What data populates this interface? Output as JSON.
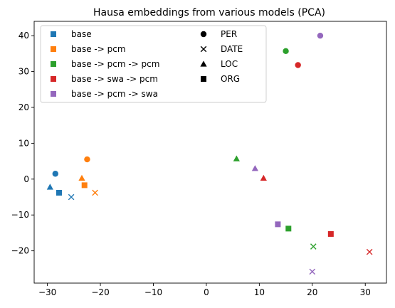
{
  "chart_data": {
    "type": "scatter",
    "title": "Hausa embeddings from various models (PCA)",
    "xlabel": "",
    "ylabel": "",
    "xlim": [
      -32.5,
      34
    ],
    "ylim": [
      -29,
      44
    ],
    "x_ticks": [
      -30,
      -20,
      -10,
      0,
      10,
      20,
      30
    ],
    "y_ticks": [
      -20,
      -10,
      0,
      10,
      20,
      30,
      40
    ],
    "grid": false,
    "legend_placement": "top-left",
    "series": [
      {
        "name": "base",
        "color": "#1f77b4",
        "points": [
          {
            "label": "PER",
            "x": -28.5,
            "y": 1.5
          },
          {
            "label": "DATE",
            "x": -25.5,
            "y": -5
          },
          {
            "label": "LOC",
            "x": -29.5,
            "y": -2.2
          },
          {
            "label": "ORG",
            "x": -27.8,
            "y": -3.8
          }
        ]
      },
      {
        "name": "base -> pcm",
        "color": "#ff7f0e",
        "points": [
          {
            "label": "PER",
            "x": -22.5,
            "y": 5.5
          },
          {
            "label": "DATE",
            "x": -21,
            "y": -3.8
          },
          {
            "label": "LOC",
            "x": -23.5,
            "y": 0.3
          },
          {
            "label": "ORG",
            "x": -23,
            "y": -1.7
          }
        ]
      },
      {
        "name": "base -> pcm -> pcm",
        "color": "#2ca02c",
        "points": [
          {
            "label": "PER",
            "x": 15,
            "y": 35.7
          },
          {
            "label": "DATE",
            "x": 20.2,
            "y": -18.8
          },
          {
            "label": "LOC",
            "x": 5.7,
            "y": 5.7
          },
          {
            "label": "ORG",
            "x": 15.5,
            "y": -13.8
          }
        ]
      },
      {
        "name": "base -> swa -> pcm",
        "color": "#d62728",
        "points": [
          {
            "label": "PER",
            "x": 17.3,
            "y": 31.8
          },
          {
            "label": "DATE",
            "x": 30.8,
            "y": -20.3
          },
          {
            "label": "LOC",
            "x": 10.8,
            "y": 0.3
          },
          {
            "label": "ORG",
            "x": 23.5,
            "y": -15.3
          }
        ]
      },
      {
        "name": "base -> pcm -> swa",
        "color": "#9467bd",
        "points": [
          {
            "label": "PER",
            "x": 21.5,
            "y": 40
          },
          {
            "label": "DATE",
            "x": 20,
            "y": -25.8
          },
          {
            "label": "LOC",
            "x": 9.2,
            "y": 3
          },
          {
            "label": "ORG",
            "x": 13.5,
            "y": -12.6
          }
        ]
      }
    ],
    "marker_legend": [
      {
        "label": "PER",
        "marker": "circle"
      },
      {
        "label": "DATE",
        "marker": "x"
      },
      {
        "label": "LOC",
        "marker": "triangle"
      },
      {
        "label": "ORG",
        "marker": "square"
      }
    ]
  }
}
